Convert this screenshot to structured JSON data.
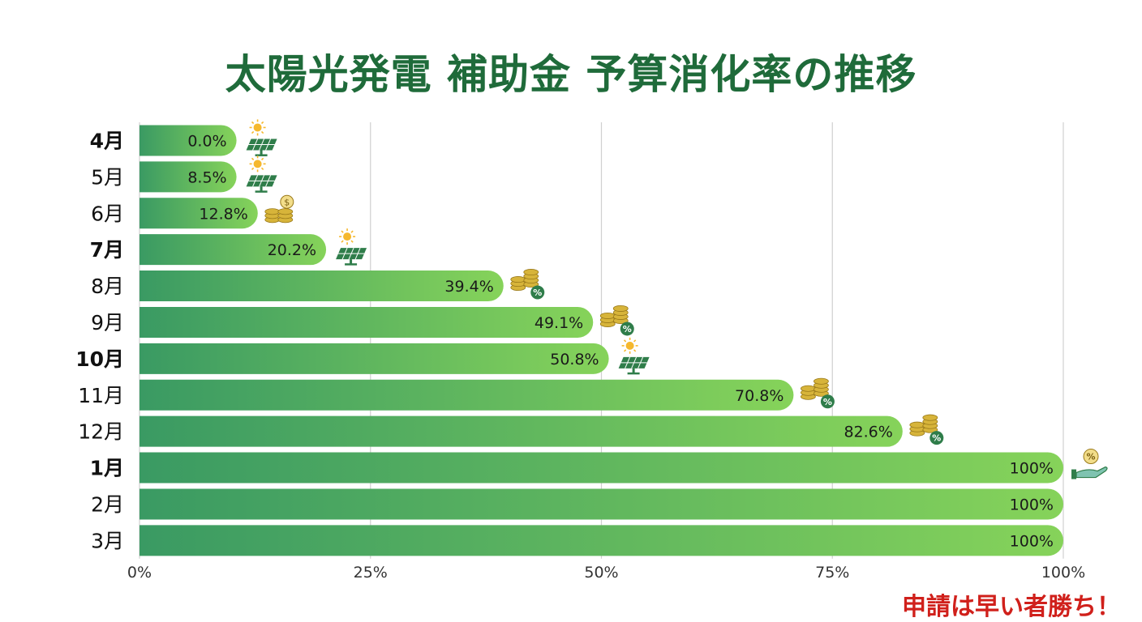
{
  "title": "太陽光発電 補助金 予算消化率の推移",
  "callout": "申請は早い者勝ち！",
  "colors": {
    "title": "#1f6b3a",
    "bar_start": "#3a9a63",
    "bar_end": "#86d35a",
    "grid": "#d0d0d0",
    "callout": "#d0201b",
    "icon_green": "#2f7d4a",
    "icon_gold": "#d7b43a"
  },
  "chart_data": {
    "type": "bar",
    "orientation": "horizontal",
    "categories": [
      "4月",
      "5月",
      "6月",
      "7月",
      "8月",
      "9月",
      "10月",
      "11月",
      "12月",
      "1月",
      "2月",
      "3月"
    ],
    "bold_categories": [
      "4月",
      "7月",
      "10月",
      "1月"
    ],
    "values": [
      0.0,
      8.5,
      12.8,
      20.2,
      39.4,
      49.1,
      50.8,
      70.8,
      82.6,
      100,
      100,
      100
    ],
    "value_labels": [
      "0.0%",
      "8.5%",
      "12.8%",
      "20.2%",
      "39.4%",
      "49.1%",
      "50.8%",
      "70.8%",
      "82.6%",
      "100%",
      "100%",
      "100%"
    ],
    "icons": [
      "solar-panel-icon",
      "solar-panel-icon",
      "coins-dollar-icon",
      "solar-panel-icon",
      "coins-percent-icon",
      "coins-percent-icon",
      "solar-panel-icon",
      "coins-percent-icon",
      "coins-percent-icon",
      "hand-percent-icon",
      "",
      ""
    ],
    "xticks": [
      "0%",
      "25%",
      "50%",
      "75%",
      "100%"
    ],
    "xlim": [
      0,
      100
    ],
    "grid": true,
    "xlabel": "",
    "ylabel": ""
  }
}
